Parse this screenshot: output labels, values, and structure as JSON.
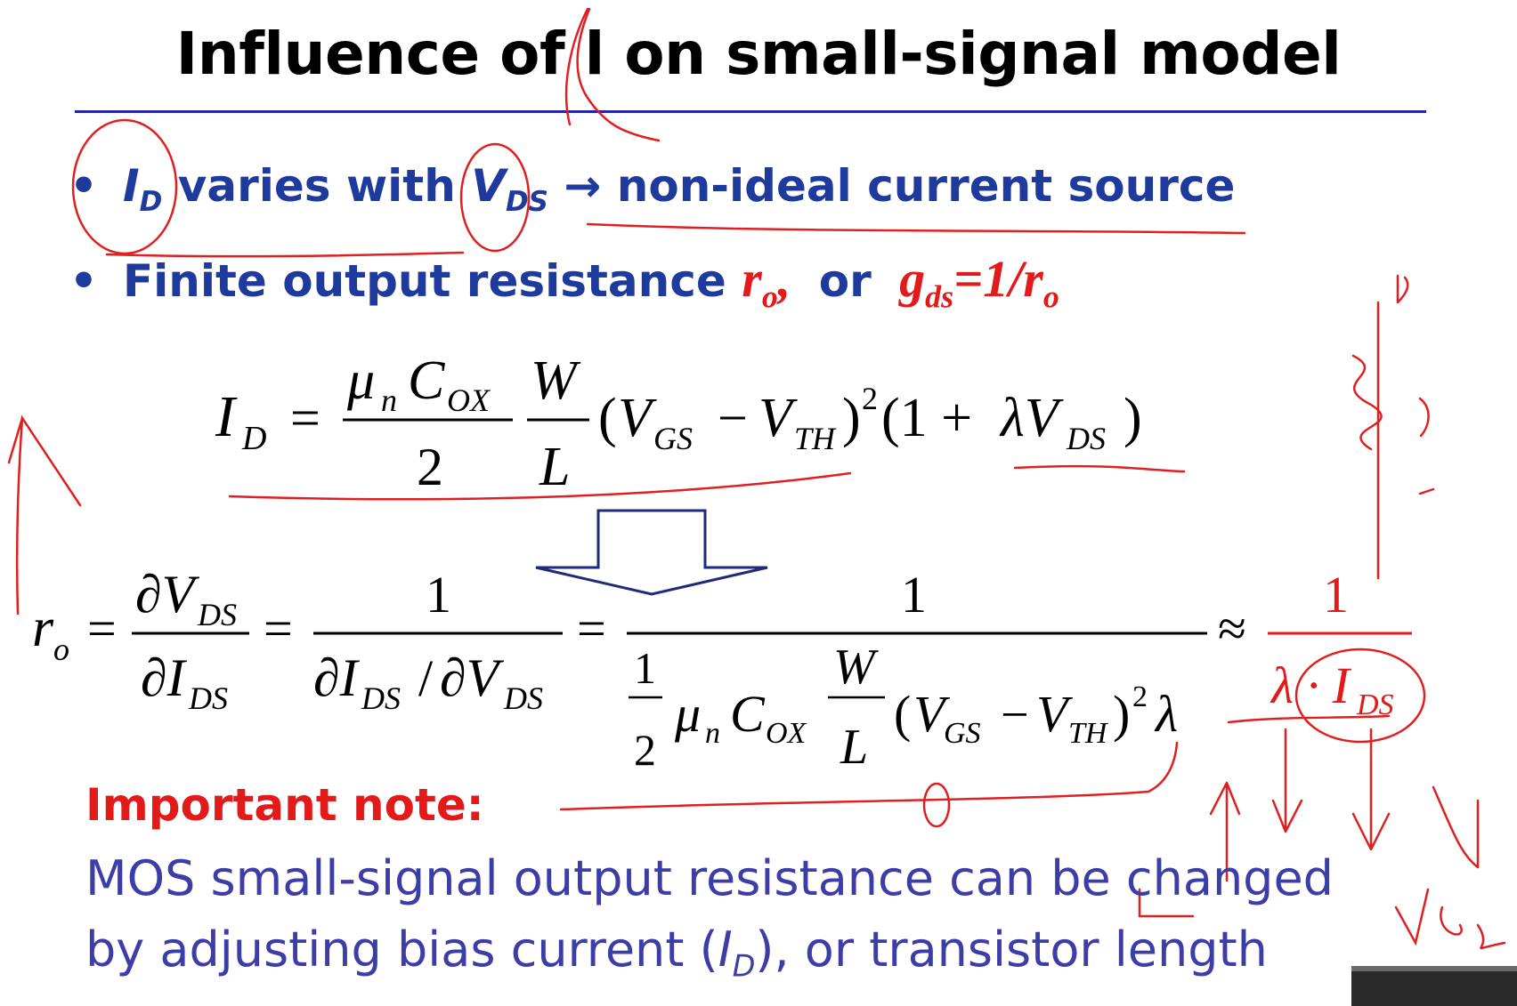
{
  "slide": {
    "title": "Influence of l on small-signal model",
    "bullet1": {
      "id": "I",
      "id_sub": "D",
      "varies": "varies with",
      "vds": "V",
      "vds_sub": "DS",
      "arrow": "→",
      "rest": "non-ideal current source"
    },
    "bullet2": {
      "text": "Finite output resistance",
      "ro": "r",
      "ro_sub": "o",
      "comma": ",",
      "or": "or",
      "g": "g",
      "g_sub": "ds",
      "eq": "=1/r",
      "eq_sub": "o"
    },
    "note": {
      "title": "Important note:",
      "line1": "MOS small-signal output resistance can be changed",
      "line2_a": "by adjusting bias current (",
      "line2_i": "I",
      "line2_sub": "D",
      "line2_b": "), or transistor length"
    },
    "colors": {
      "title": "#000000",
      "bullet_blue": "#1e3a9c",
      "accent_red": "#e21a1a",
      "note_blue": "#3d3da8",
      "rule": "#2222aa"
    }
  }
}
